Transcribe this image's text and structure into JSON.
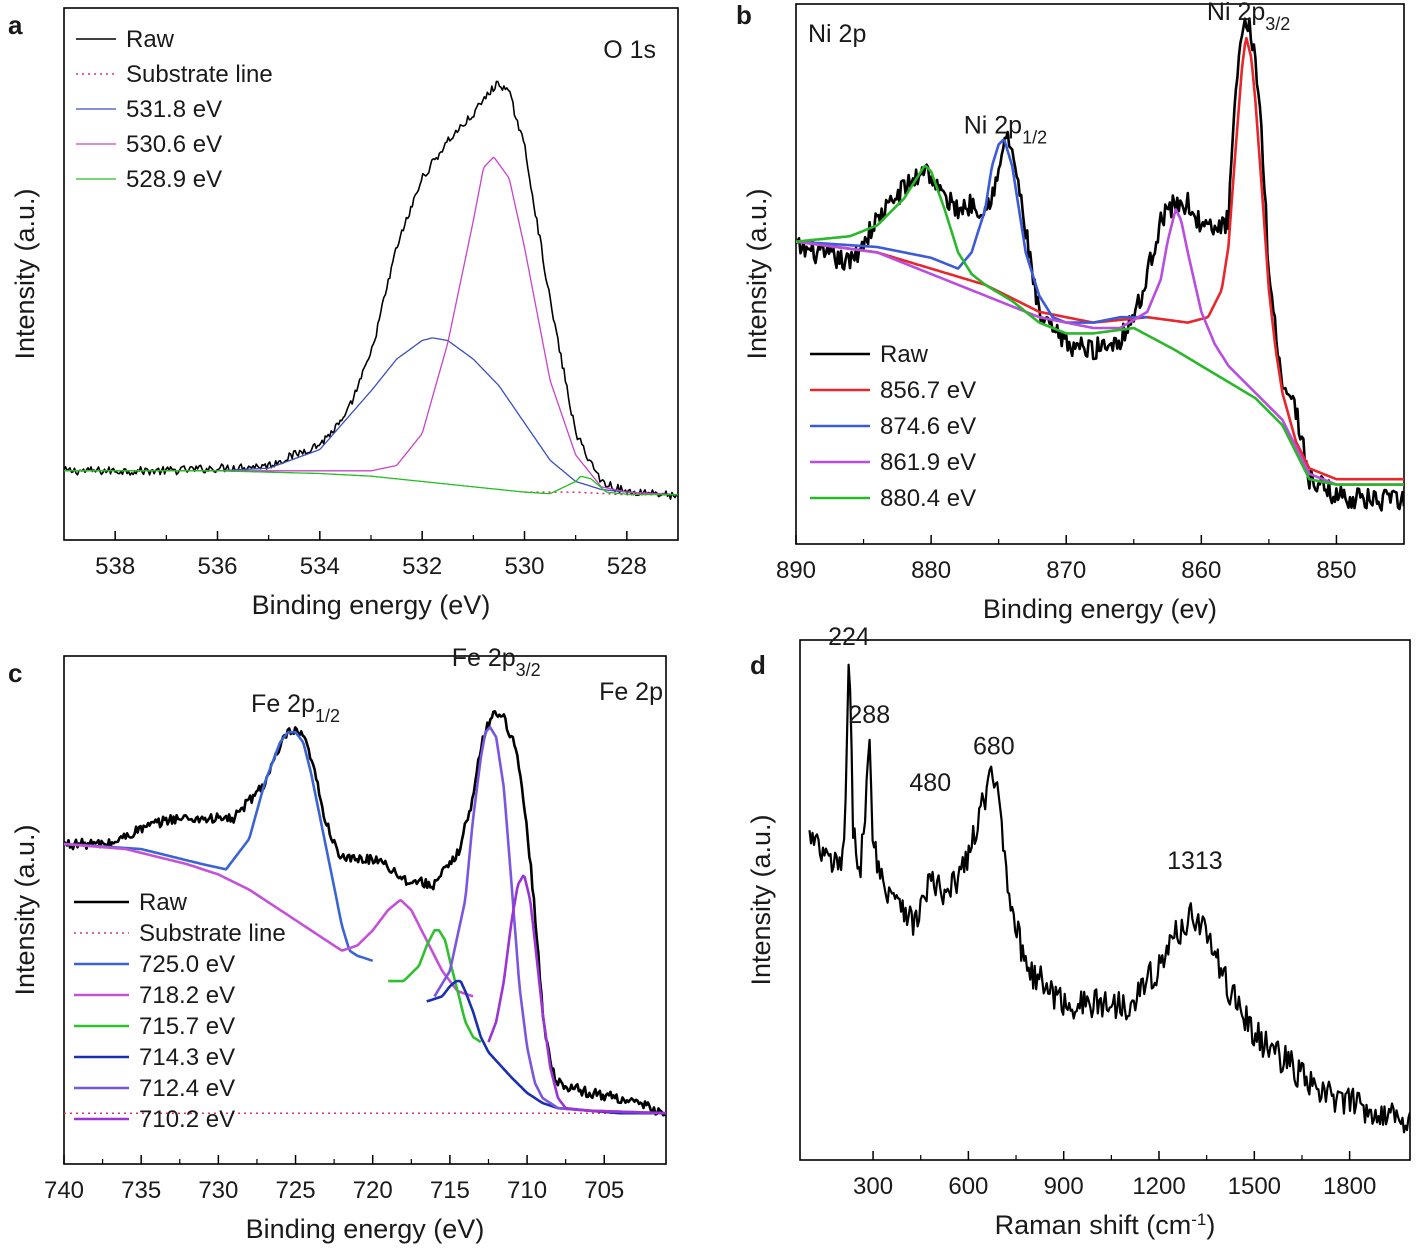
{
  "chart_data": [
    {
      "panel": "a",
      "type": "line",
      "title": "O 1s",
      "xlabel": "Binding energy (eV)",
      "ylabel": "Intensity (a.u.)",
      "xlim": [
        539,
        527
      ],
      "x_reversed": true,
      "ylim": [
        0,
        100
      ],
      "x_ticks": [
        538,
        536,
        534,
        532,
        530,
        528
      ],
      "y_ticks": false,
      "legend_position": "top-left",
      "series": [
        {
          "name": "Raw",
          "color": "#000000",
          "dash": "solid",
          "width": 1.6,
          "noise": 0.8,
          "x": [
            539,
            537,
            535,
            534,
            533.5,
            533,
            532.5,
            532,
            531.5,
            531,
            530.7,
            530.5,
            530.3,
            530,
            529.5,
            529,
            528.5,
            528,
            527.5,
            527
          ],
          "y": [
            13,
            13,
            14,
            18,
            23,
            35,
            55,
            68,
            75,
            80,
            84,
            86,
            84,
            74,
            45,
            20,
            11,
            9,
            9,
            8
          ]
        },
        {
          "name": "Substrate line",
          "color": "#e0306a",
          "dash": "dot",
          "width": 1.5,
          "x": [
            530,
            529,
            528,
            527
          ],
          "y": [
            9,
            9,
            8.5,
            8.5
          ]
        },
        {
          "name": "531.8 eV",
          "color": "#3a4fc0",
          "dash": "solid",
          "width": 1.3,
          "x": [
            539,
            536,
            535,
            534,
            533,
            532.5,
            532,
            531.8,
            531.5,
            531,
            530.5,
            530,
            529.5,
            529,
            528.5,
            528,
            527
          ],
          "y": [
            13,
            13,
            13.5,
            17,
            28,
            34,
            37.5,
            38,
            37.5,
            34,
            29,
            22,
            15,
            11,
            9.5,
            9,
            8.5
          ]
        },
        {
          "name": "530.6 eV",
          "color": "#c844c8",
          "dash": "solid",
          "width": 1.3,
          "x": [
            539,
            533,
            532.5,
            532,
            531.5,
            531,
            530.8,
            530.6,
            530.3,
            530,
            529.5,
            529,
            528.5,
            528,
            527
          ],
          "y": [
            13,
            13,
            14,
            20,
            37,
            60,
            70,
            72,
            68,
            55,
            30,
            16,
            10,
            9,
            8.5
          ]
        },
        {
          "name": "528.9 eV",
          "color": "#22c022",
          "dash": "solid",
          "width": 1.3,
          "x": [
            539,
            536,
            534,
            533,
            532,
            531,
            530,
            529.5,
            529,
            528.9,
            528.7,
            528.4,
            528,
            527
          ],
          "y": [
            13,
            13,
            12.5,
            12,
            11,
            10,
            9,
            8.7,
            11,
            12,
            11.5,
            9,
            8.6,
            8.5
          ]
        }
      ]
    },
    {
      "panel": "b",
      "type": "line",
      "title": "Ni 2p",
      "xlabel": "Binding energy (ev)",
      "ylabel": "Intensity (a.u.)",
      "xlim": [
        890,
        845
      ],
      "x_reversed": true,
      "ylim": [
        0,
        100
      ],
      "x_ticks": [
        890,
        880,
        870,
        860,
        850
      ],
      "y_ticks": false,
      "legend_position": "bottom-left",
      "annotations": [
        {
          "text": "Ni 2p",
          "sub": "3/2",
          "x": 856.5,
          "y": 97
        },
        {
          "text": "Ni 2p",
          "sub": "1/2",
          "x": 874.5,
          "y": 76
        }
      ],
      "series": [
        {
          "name": "Raw",
          "color": "#000000",
          "dash": "solid",
          "width": 2.6,
          "noise": 2,
          "x": [
            890,
            886,
            884,
            882,
            881,
            880.5,
            879,
            878,
            877,
            876,
            875,
            874.5,
            874,
            873,
            872,
            870,
            868,
            866,
            864.5,
            863,
            862,
            861,
            860,
            859,
            858,
            857.5,
            857,
            856.5,
            856,
            855.5,
            855,
            854,
            853,
            852,
            850,
            847,
            845
          ],
          "y": [
            55,
            52,
            60,
            66,
            68,
            70,
            64,
            62,
            63,
            62,
            68,
            76,
            73,
            58,
            42,
            37,
            36,
            38,
            45,
            60,
            63,
            63,
            59,
            58,
            60,
            82,
            94,
            97,
            90,
            75,
            50,
            30,
            25,
            12,
            9,
            8,
            8
          ]
        },
        {
          "name": "856.7 eV",
          "color": "#e8262b",
          "dash": "solid",
          "width": 2.6,
          "x": [
            890,
            884,
            880,
            876,
            872,
            868,
            864,
            861,
            859.5,
            858.5,
            858,
            857.5,
            857,
            856.7,
            856.3,
            856,
            855.5,
            855,
            854.5,
            854,
            853,
            852,
            850,
            847,
            845
          ],
          "y": [
            56,
            54,
            51,
            48,
            43,
            41,
            42,
            41,
            42,
            47,
            55,
            72,
            88,
            94,
            90,
            82,
            65,
            47,
            36,
            28,
            19,
            14,
            12,
            12,
            12
          ]
        },
        {
          "name": "874.6 eV",
          "color": "#3b5bd8",
          "dash": "solid",
          "width": 2.6,
          "x": [
            890,
            884,
            880,
            878,
            877,
            876,
            875.5,
            875,
            874.6,
            874,
            873.5,
            873,
            872,
            871,
            870,
            868,
            866,
            864
          ],
          "y": [
            56,
            55,
            53,
            51,
            54,
            62,
            70,
            74,
            75,
            70,
            62,
            54,
            46,
            42,
            41,
            41,
            42,
            42
          ]
        },
        {
          "name": "861.9 eV",
          "color": "#b84ee0",
          "dash": "solid",
          "width": 2.6,
          "x": [
            890,
            884,
            880,
            876,
            872,
            868,
            866,
            864,
            863,
            862.5,
            862,
            861.9,
            861.5,
            861,
            860,
            859,
            858,
            856,
            854,
            852,
            850,
            847,
            845
          ],
          "y": [
            56,
            54,
            50,
            46,
            42,
            40,
            40,
            43,
            49,
            56,
            61,
            62,
            60,
            54,
            43,
            37,
            33,
            28,
            23,
            13,
            11,
            11,
            11
          ]
        },
        {
          "name": "880.4 eV",
          "color": "#2ab82a",
          "dash": "solid",
          "width": 2.6,
          "x": [
            890,
            886,
            884,
            882,
            881,
            880.5,
            880.4,
            880,
            879,
            878,
            877,
            876,
            874,
            872,
            870,
            868,
            865,
            862,
            860,
            858,
            856,
            854,
            852,
            850,
            845
          ],
          "y": [
            56,
            57,
            59,
            64,
            68,
            70,
            70,
            69,
            62,
            54,
            50,
            48,
            45,
            41,
            39,
            39,
            40,
            36,
            33,
            30,
            27,
            22,
            12,
            11,
            11
          ]
        }
      ]
    },
    {
      "panel": "c",
      "type": "line",
      "title": "Fe 2p",
      "xlabel": "Binding energy (eV)",
      "ylabel": "Intensity (a.u.)",
      "xlim": [
        740,
        701
      ],
      "x_reversed": true,
      "ylim": [
        0,
        100
      ],
      "x_ticks": [
        740,
        735,
        730,
        725,
        720,
        715,
        710,
        705
      ],
      "y_ticks": false,
      "legend_position": "bottom-left",
      "annotations": [
        {
          "text": "Fe 2p",
          "sub": "1/2",
          "x": 725,
          "y": 89
        },
        {
          "text": "Fe 2p",
          "sub": "3/2",
          "x": 712,
          "y": 98
        }
      ],
      "series": [
        {
          "name": "Raw",
          "color": "#000000",
          "dash": "solid",
          "width": 2.6,
          "noise": 1,
          "x": [
            740,
            737,
            735,
            733,
            731,
            729,
            727,
            726,
            725.5,
            725,
            724.5,
            724,
            723,
            722,
            721,
            719.5,
            718,
            716,
            714.5,
            713.5,
            713,
            712.5,
            712,
            711.5,
            711,
            710.5,
            710,
            709.5,
            709,
            708.5,
            708,
            706,
            704,
            702,
            701
          ],
          "y": [
            63,
            63,
            66,
            68,
            68,
            68,
            75,
            82,
            85,
            85,
            84,
            80,
            67,
            60,
            60,
            60,
            56,
            55,
            61,
            72,
            82,
            87,
            89,
            88,
            84,
            78,
            66,
            50,
            30,
            20,
            16,
            14,
            13,
            11,
            10
          ]
        },
        {
          "name": "Substrate line",
          "color": "#e0306a",
          "dash": "dot",
          "width": 1.5,
          "x": [
            740,
            701
          ],
          "y": [
            10,
            10
          ]
        },
        {
          "name": "725.0 eV",
          "color": "#3a64d6",
          "dash": "solid",
          "width": 2.6,
          "x": [
            740,
            735,
            731,
            729.5,
            728,
            727,
            726,
            725.5,
            725,
            724.5,
            724,
            723,
            722,
            721.5,
            721,
            720
          ],
          "y": [
            63,
            62,
            59,
            58,
            64,
            75,
            83,
            85,
            85,
            83,
            77,
            62,
            47,
            42,
            41,
            40
          ]
        },
        {
          "name": "718.2 eV",
          "color": "#c452d6",
          "dash": "solid",
          "width": 2.6,
          "x": [
            740,
            736,
            732,
            730,
            728,
            726,
            724,
            722,
            721,
            720,
            719,
            718.2,
            717.5,
            716.5,
            715.5,
            714.5,
            713.5
          ],
          "y": [
            63,
            62,
            59,
            57,
            54,
            50,
            46,
            42,
            43,
            46,
            50,
            52,
            50,
            44,
            38,
            34,
            33
          ]
        },
        {
          "name": "715.7 eV",
          "color": "#2ec02e",
          "dash": "solid",
          "width": 2.6,
          "x": [
            719,
            718,
            717,
            716.5,
            716,
            715.7,
            715.3,
            715,
            714.5,
            714,
            713.5,
            713
          ],
          "y": [
            36,
            36,
            39,
            43,
            46,
            46,
            44,
            40,
            34,
            28,
            25,
            24
          ]
        },
        {
          "name": "714.3 eV",
          "color": "#1a2fb0",
          "dash": "solid",
          "width": 2.6,
          "x": [
            716.5,
            715.5,
            715,
            714.6,
            714.3,
            714,
            713.5,
            713,
            712.5,
            711,
            710,
            709,
            708,
            706,
            704,
            702,
            701
          ],
          "y": [
            32,
            33,
            35,
            36,
            36,
            34,
            30,
            25,
            22,
            17,
            14,
            12,
            11,
            10.5,
            10,
            10,
            10
          ]
        },
        {
          "name": "712.4 eV",
          "color": "#7a56e0",
          "dash": "solid",
          "width": 2.6,
          "x": [
            716,
            715,
            714,
            713.5,
            713,
            712.7,
            712.4,
            712,
            711.5,
            711,
            710.5,
            710,
            709.5,
            709,
            708.5,
            708,
            706,
            701
          ],
          "y": [
            33,
            38,
            52,
            68,
            80,
            85,
            86,
            84,
            74,
            55,
            35,
            23,
            16,
            13,
            12,
            11,
            10.5,
            10
          ]
        },
        {
          "name": "710.2 eV",
          "color": "#9a34d6",
          "dash": "solid",
          "width": 2.6,
          "x": [
            712.5,
            712,
            711.5,
            711,
            710.6,
            710.2,
            709.8,
            709.5,
            709,
            708.5,
            708,
            707.5,
            706,
            701
          ],
          "y": [
            24,
            28,
            36,
            48,
            55,
            57,
            52,
            44,
            30,
            19,
            13,
            11,
            10.5,
            10
          ]
        }
      ]
    },
    {
      "panel": "d",
      "type": "line",
      "title": "",
      "xlabel": "Raman shift (cm",
      "xlabel_sup": "-1",
      "xlabel_suffix": ")",
      "ylabel": "Intensity (a.u.)",
      "xlim": [
        70,
        1990
      ],
      "x_reversed": false,
      "ylim": [
        0,
        100
      ],
      "x_ticks": [
        300,
        600,
        900,
        1200,
        1500,
        1800
      ],
      "y_ticks": false,
      "annotations": [
        {
          "text": "224",
          "x": 224,
          "y": 99
        },
        {
          "text": "288",
          "x": 288,
          "y": 84
        },
        {
          "text": "480",
          "x": 480,
          "y": 71
        },
        {
          "text": "680",
          "x": 680,
          "y": 78
        },
        {
          "text": "1313",
          "x": 1313,
          "y": 56
        }
      ],
      "series": [
        {
          "name": "",
          "color": "#000000",
          "dash": "solid",
          "width": 2.2,
          "noise": 3,
          "x": [
            100,
            150,
            190,
            210,
            224,
            238,
            260,
            275,
            288,
            300,
            330,
            380,
            430,
            480,
            530,
            580,
            620,
            650,
            670,
            680,
            700,
            720,
            760,
            800,
            900,
            1000,
            1100,
            1200,
            1250,
            1300,
            1313,
            1350,
            1400,
            1450,
            1500,
            1600,
            1700,
            1800,
            1900,
            1990
          ],
          "y": [
            62,
            58,
            56,
            60,
            97,
            62,
            57,
            66,
            80,
            62,
            53,
            51,
            45,
            54,
            50,
            56,
            62,
            70,
            73,
            73,
            68,
            55,
            42,
            36,
            30,
            30,
            30,
            37,
            43,
            47,
            47,
            44,
            35,
            30,
            24,
            19,
            13,
            11,
            9,
            8
          ]
        }
      ]
    }
  ]
}
